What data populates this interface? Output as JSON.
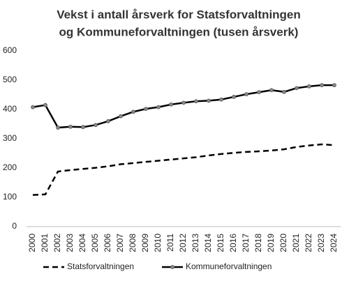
{
  "chart_data": {
    "type": "line",
    "title": [
      "Vekst i antall årsverk for Statsforvaltningen",
      "og Kommuneforvaltningen (tusen årsverk)"
    ],
    "categories": [
      "2000",
      "2001",
      "2002",
      "2003",
      "2004",
      "2005",
      "2006",
      "2007",
      "2008",
      "2009",
      "2010",
      "2011",
      "2012",
      "2013",
      "2014",
      "2015",
      "2016",
      "2017",
      "2018",
      "2019",
      "2020",
      "2021",
      "2022",
      "2023",
      "2024"
    ],
    "series": [
      {
        "name": "Statsforvaltningen",
        "color": "#000000",
        "dashed": true,
        "marker": false,
        "values": [
          108,
          110,
          188,
          193,
          197,
          201,
          206,
          213,
          217,
          221,
          225,
          229,
          233,
          237,
          243,
          248,
          252,
          255,
          257,
          260,
          264,
          272,
          277,
          281,
          278
        ]
      },
      {
        "name": "Kommuneforvaltningen",
        "color": "#000000",
        "dashed": false,
        "marker": true,
        "values": [
          408,
          415,
          338,
          341,
          340,
          347,
          360,
          377,
          392,
          402,
          408,
          417,
          423,
          428,
          430,
          434,
          443,
          452,
          459,
          466,
          460,
          473,
          479,
          483,
          483
        ]
      }
    ],
    "ylim": [
      0,
      600
    ],
    "yticks": [
      0,
      100,
      200,
      300,
      400,
      500,
      600
    ],
    "grid": false,
    "legend": "bottom"
  }
}
